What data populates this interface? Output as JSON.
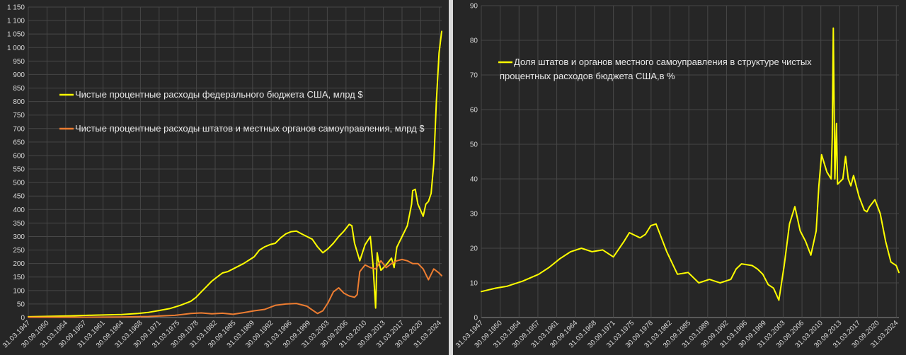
{
  "chart_data": [
    {
      "type": "line",
      "title": "",
      "xlabel": "",
      "ylabel": "",
      "ylim": [
        0,
        1150
      ],
      "y_ticks": [
        "0",
        "50",
        "100",
        "150",
        "200",
        "250",
        "300",
        "350",
        "400",
        "450",
        "500",
        "550",
        "600",
        "650",
        "700",
        "750",
        "800",
        "850",
        "900",
        "950",
        "1 000",
        "1 050",
        "1 100",
        "1 150"
      ],
      "x_ticks": [
        "31.03.1947",
        "30.09.1950",
        "31.03.1954",
        "30.09.1957",
        "31.03.1961",
        "30.09.1964",
        "31.03.1968",
        "30.09.1971",
        "31.03.1975",
        "30.09.1978",
        "31.03.1982",
        "30.09.1985",
        "31.03.1989",
        "30.09.1992",
        "31.03.1996",
        "30.09.1999",
        "31.03.2003",
        "30.09.2006",
        "31.03.2010",
        "30.09.2013",
        "31.03.2017",
        "30.09.2020",
        "31.03.2024"
      ],
      "x_range": [
        1947.25,
        2025.5
      ],
      "grid": true,
      "legend_position": "upper-left",
      "series": [
        {
          "name": "Чистые процентные расходы федерального бюджета США, млрд $",
          "color": "#ffff00",
          "x": [
            1947.25,
            1950,
            1955,
            1960,
            1965,
            1968,
            1970,
            1972,
            1974,
            1976,
            1978,
            1979,
            1980,
            1981,
            1982,
            1983,
            1984,
            1985,
            1986,
            1988,
            1990,
            1991,
            1992,
            1993,
            1994,
            1995,
            1996,
            1997,
            1998,
            1999,
            2000,
            2001,
            2002,
            2003,
            2004,
            2005,
            2006,
            2007,
            2008,
            2008.5,
            2009,
            2010,
            2011,
            2012,
            2012.5,
            2013,
            2013.3,
            2013.5,
            2014,
            2015,
            2016,
            2016.5,
            2017,
            2018,
            2019,
            2019.8,
            2020,
            2020.5,
            2021,
            2022,
            2022.5,
            2023,
            2023.5,
            2024,
            2024.5,
            2025,
            2025.5
          ],
          "values": [
            3,
            4,
            6,
            9,
            11,
            15,
            19,
            26,
            33,
            45,
            60,
            75,
            95,
            115,
            135,
            150,
            165,
            170,
            180,
            200,
            225,
            250,
            262,
            270,
            275,
            295,
            310,
            318,
            320,
            310,
            300,
            290,
            262,
            240,
            255,
            275,
            300,
            320,
            345,
            340,
            275,
            210,
            270,
            300,
            195,
            35,
            240,
            215,
            175,
            195,
            220,
            185,
            260,
            300,
            340,
            420,
            470,
            475,
            420,
            375,
            420,
            430,
            460,
            570,
            800,
            980,
            1060
          ]
        },
        {
          "name": "Чистые процентные расходы штатов и местных органов самоуправления, млрд $",
          "color": "#ed7d31",
          "x": [
            1947.25,
            1955,
            1965,
            1970,
            1975,
            1978,
            1980,
            1982,
            1984,
            1986,
            1988,
            1990,
            1992,
            1994,
            1996,
            1998,
            2000,
            2001,
            2002,
            2003,
            2004,
            2005,
            2006,
            2007,
            2008,
            2009,
            2009.5,
            2010,
            2011,
            2012,
            2013,
            2014,
            2015,
            2016,
            2017,
            2018,
            2019,
            2020,
            2021,
            2022,
            2023,
            2024,
            2025,
            2025.5
          ],
          "values": [
            1,
            1,
            2,
            4,
            8,
            15,
            17,
            14,
            16,
            12,
            18,
            25,
            30,
            45,
            50,
            52,
            42,
            28,
            15,
            25,
            55,
            95,
            110,
            90,
            80,
            75,
            85,
            170,
            195,
            185,
            180,
            210,
            185,
            200,
            210,
            215,
            210,
            200,
            200,
            180,
            140,
            180,
            165,
            155
          ]
        }
      ]
    },
    {
      "type": "line",
      "title": "",
      "xlabel": "",
      "ylabel": "",
      "ylim": [
        0,
        90
      ],
      "y_ticks": [
        "0",
        "10",
        "20",
        "30",
        "40",
        "50",
        "60",
        "70",
        "80",
        "90"
      ],
      "x_ticks": [
        "31.03.1947",
        "30.09.1950",
        "31.03.1954",
        "30.09.1957",
        "31.03.1961",
        "30.09.1964",
        "31.03.1968",
        "30.09.1971",
        "31.03.1975",
        "30.09.1978",
        "31.03.1982",
        "30.09.1985",
        "31.03.1989",
        "30.09.1992",
        "31.03.1996",
        "30.09.1999",
        "31.03.2003",
        "30.09.2006",
        "31.03.2010",
        "30.09.2013",
        "31.03.2017",
        "30.09.2020",
        "31.03.2024"
      ],
      "x_range": [
        1947.25,
        2025.5
      ],
      "grid": true,
      "legend_position": "upper-left",
      "series": [
        {
          "name": "Доля штатов и органов местного самоуправления в структуре чистых процентных расходов бюджета США,в %",
          "color": "#ffff00",
          "x": [
            1947.25,
            1950,
            1952,
            1955,
            1958,
            1960,
            1962,
            1964,
            1966,
            1968,
            1970,
            1972,
            1974,
            1975,
            1977,
            1978,
            1979,
            1980,
            1982,
            1984,
            1986,
            1988,
            1990,
            1992,
            1994,
            1995,
            1996,
            1998,
            1999,
            2000,
            2001,
            2002,
            2003,
            2004,
            2005,
            2006,
            2007,
            2008,
            2009,
            2010,
            2010.5,
            2011,
            2012,
            2012.8,
            2013,
            2013.2,
            2013.5,
            2013.8,
            2014,
            2015,
            2015.5,
            2016,
            2016.5,
            2017,
            2018,
            2019,
            2019.5,
            2020,
            2021,
            2022,
            2023,
            2024,
            2025,
            2025.5
          ],
          "values": [
            7.5,
            8.5,
            9,
            10.5,
            12.5,
            14.5,
            17,
            19,
            20,
            19,
            19.5,
            17.5,
            22,
            24.5,
            23,
            24,
            26.5,
            27,
            19,
            12.5,
            13,
            10,
            11,
            10,
            11,
            14,
            15.5,
            15,
            14,
            12.5,
            9.5,
            8.5,
            5,
            15,
            27,
            32,
            25,
            22,
            18,
            25,
            38,
            47,
            42,
            40,
            52,
            83.5,
            40,
            56,
            38.5,
            40,
            46.5,
            40,
            38,
            41,
            35,
            31,
            30.5,
            32,
            34,
            30,
            22,
            16,
            15,
            13
          ]
        }
      ]
    }
  ]
}
